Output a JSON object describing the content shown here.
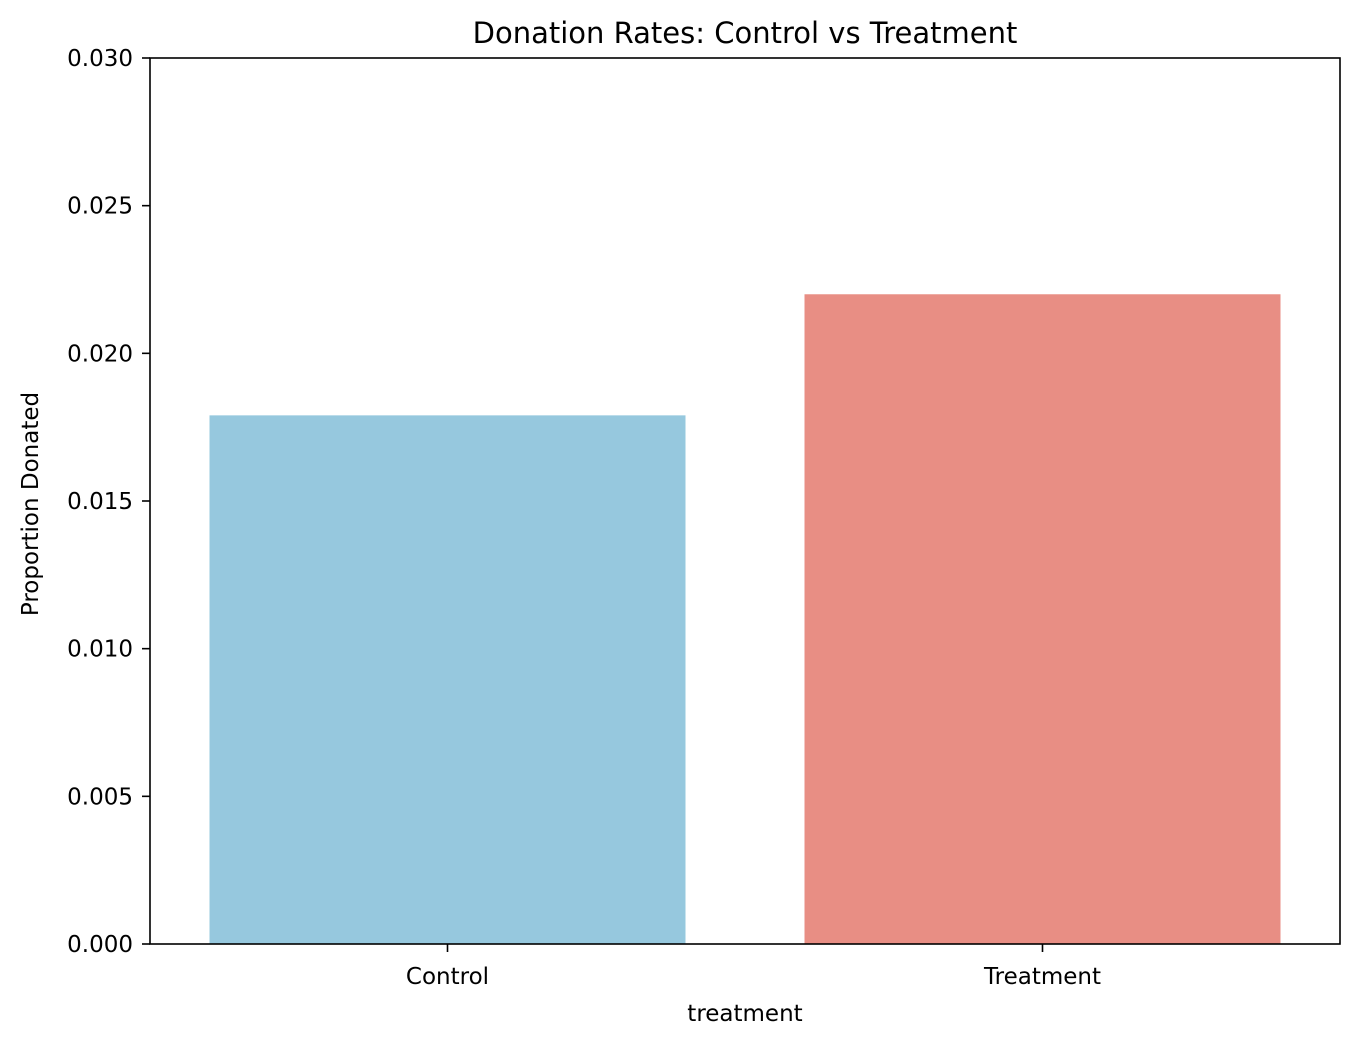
{
  "chart_data": {
    "type": "bar",
    "title": "Donation Rates: Control vs Treatment",
    "xlabel": "treatment",
    "ylabel": "Proportion Donated",
    "categories": [
      "Control",
      "Treatment"
    ],
    "values": [
      0.0179,
      0.022
    ],
    "colors": [
      "#96c8de",
      "#e88e84"
    ],
    "ylim": [
      0,
      0.03
    ],
    "yticks": [
      "0.000",
      "0.005",
      "0.010",
      "0.015",
      "0.020",
      "0.025",
      "0.030"
    ],
    "grid": false,
    "legend": "none"
  }
}
